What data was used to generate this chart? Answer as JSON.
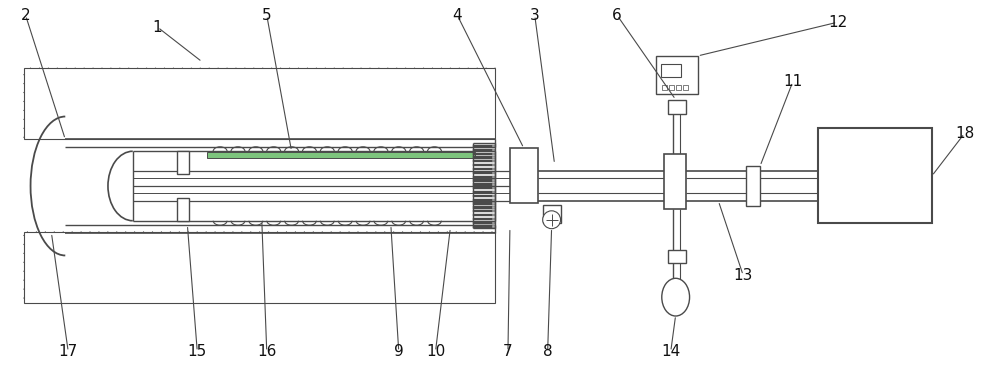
{
  "fig_width": 10.0,
  "fig_height": 3.71,
  "dpi": 100,
  "background_color": "#ffffff",
  "line_color": "#4a4a4a"
}
